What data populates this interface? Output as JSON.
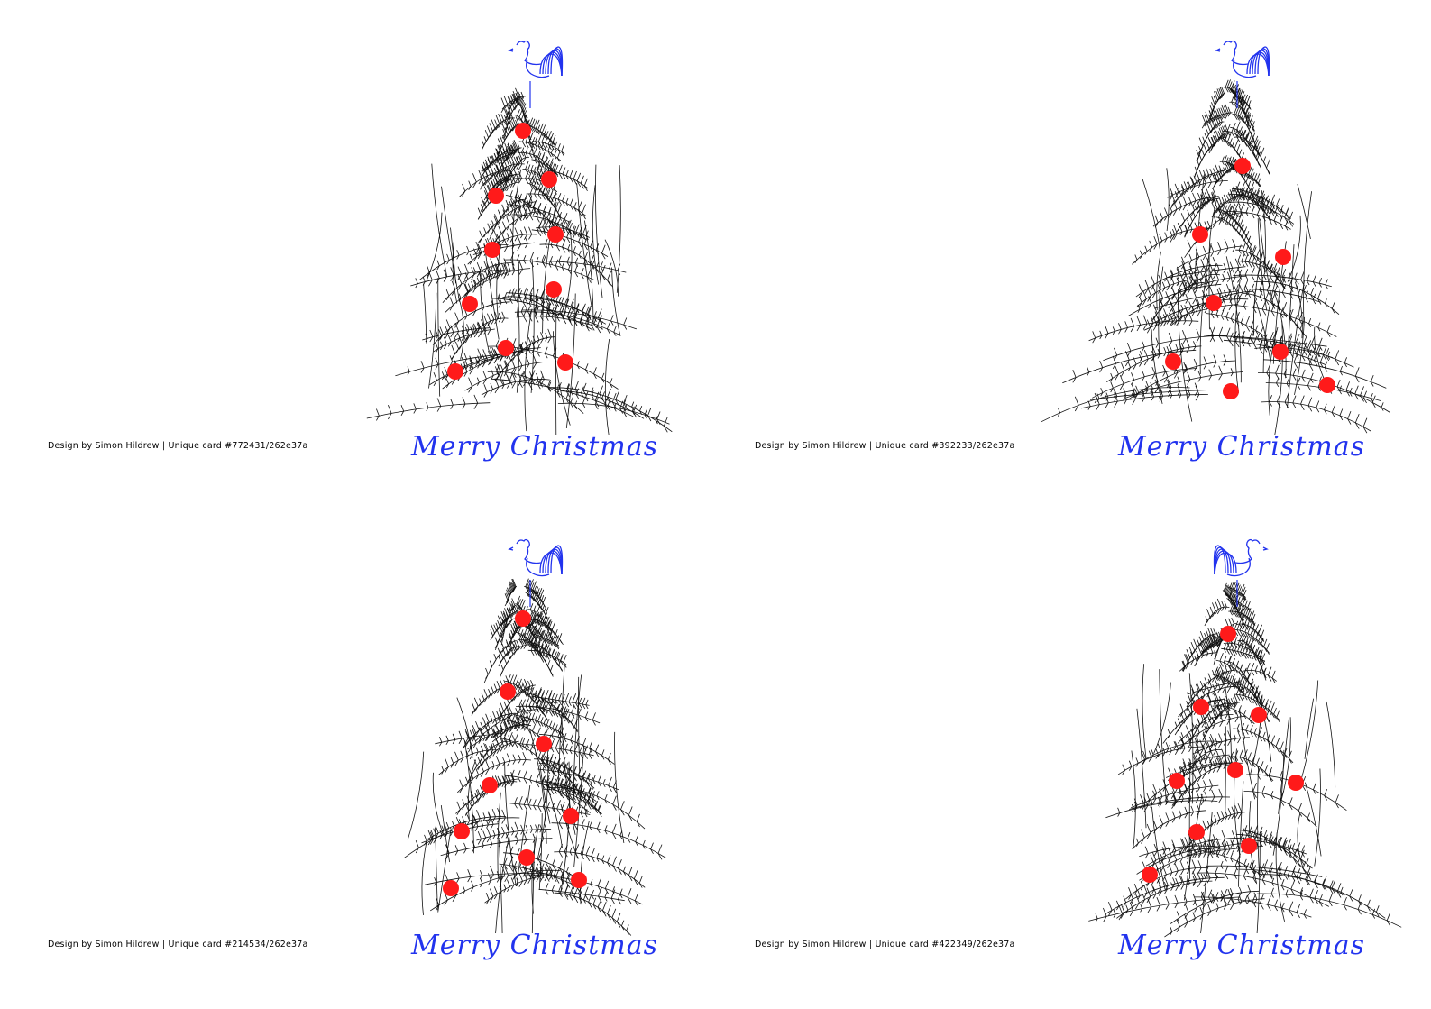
{
  "accent_colors": {
    "ornament": "#ff1a1a",
    "line": "#2233ee",
    "branch": "#111111"
  },
  "cards": [
    {
      "credit": "Design by Simon Hildrew | Unique card #772431/262e37a",
      "greeting": "Merry Christmas",
      "rooster_icon": "rooster-icon",
      "facing": "right"
    },
    {
      "credit": "Design by Simon Hildrew | Unique card #392233/262e37a",
      "greeting": "Merry Christmas",
      "rooster_icon": "rooster-icon",
      "facing": "right"
    },
    {
      "credit": "Design by Simon Hildrew | Unique card #214534/262e37a",
      "greeting": "Merry Christmas",
      "rooster_icon": "rooster-icon",
      "facing": "right"
    },
    {
      "credit": "Design by Simon Hildrew | Unique card #422349/262e37a",
      "greeting": "Merry Christmas",
      "rooster_icon": "rooster-icon",
      "facing": "left"
    }
  ]
}
